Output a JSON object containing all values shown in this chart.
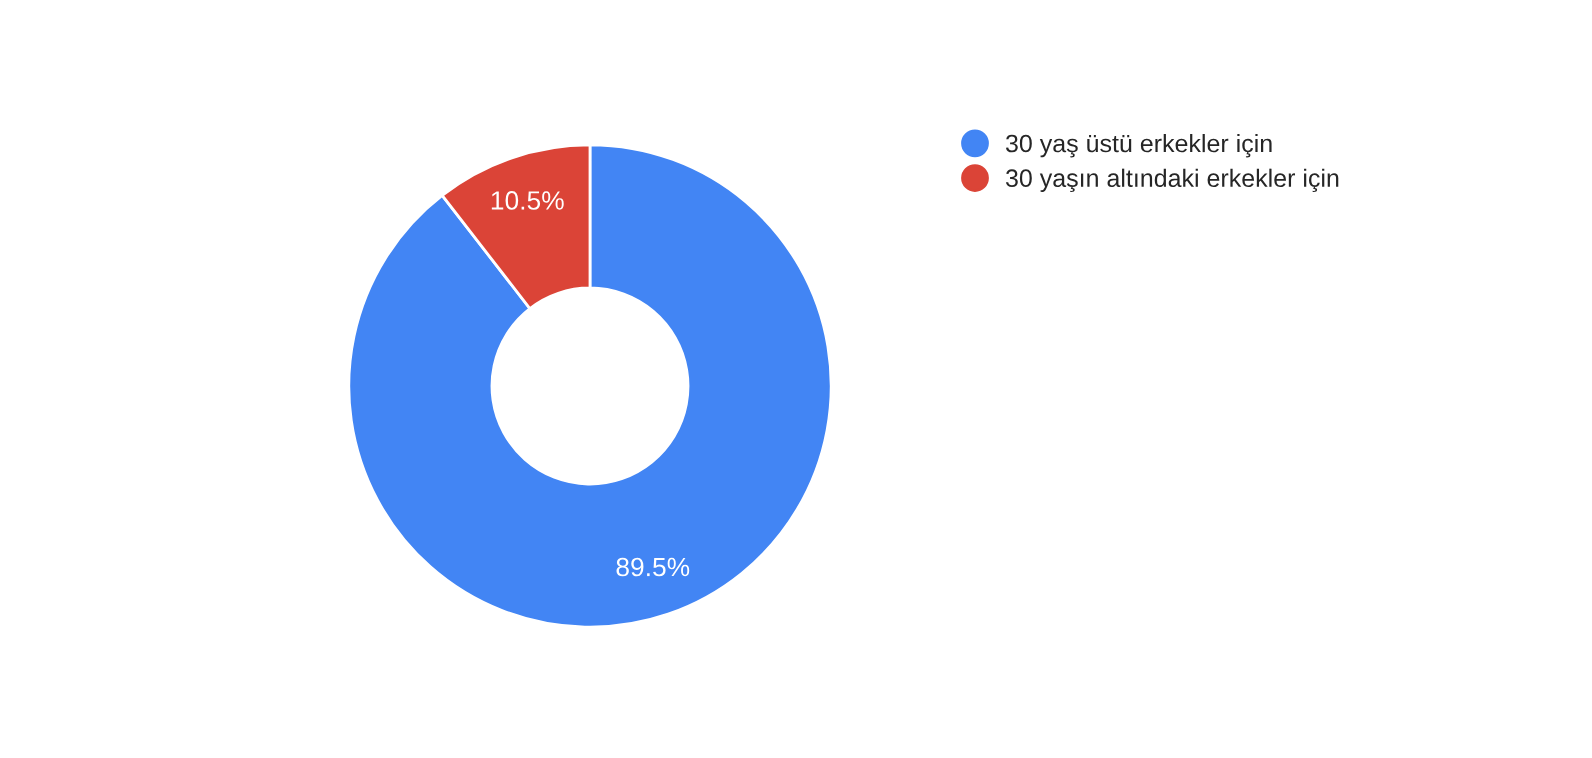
{
  "chart_data": {
    "type": "donut",
    "categories": [
      "30 yaş üstü erkekler için",
      "30 yaşın altındaki erkekler için"
    ],
    "values": [
      89.5,
      10.5
    ],
    "colors": [
      "#4285f4",
      "#db4437"
    ],
    "value_labels": [
      "89.5%",
      "10.5%"
    ],
    "legend": "top right"
  }
}
